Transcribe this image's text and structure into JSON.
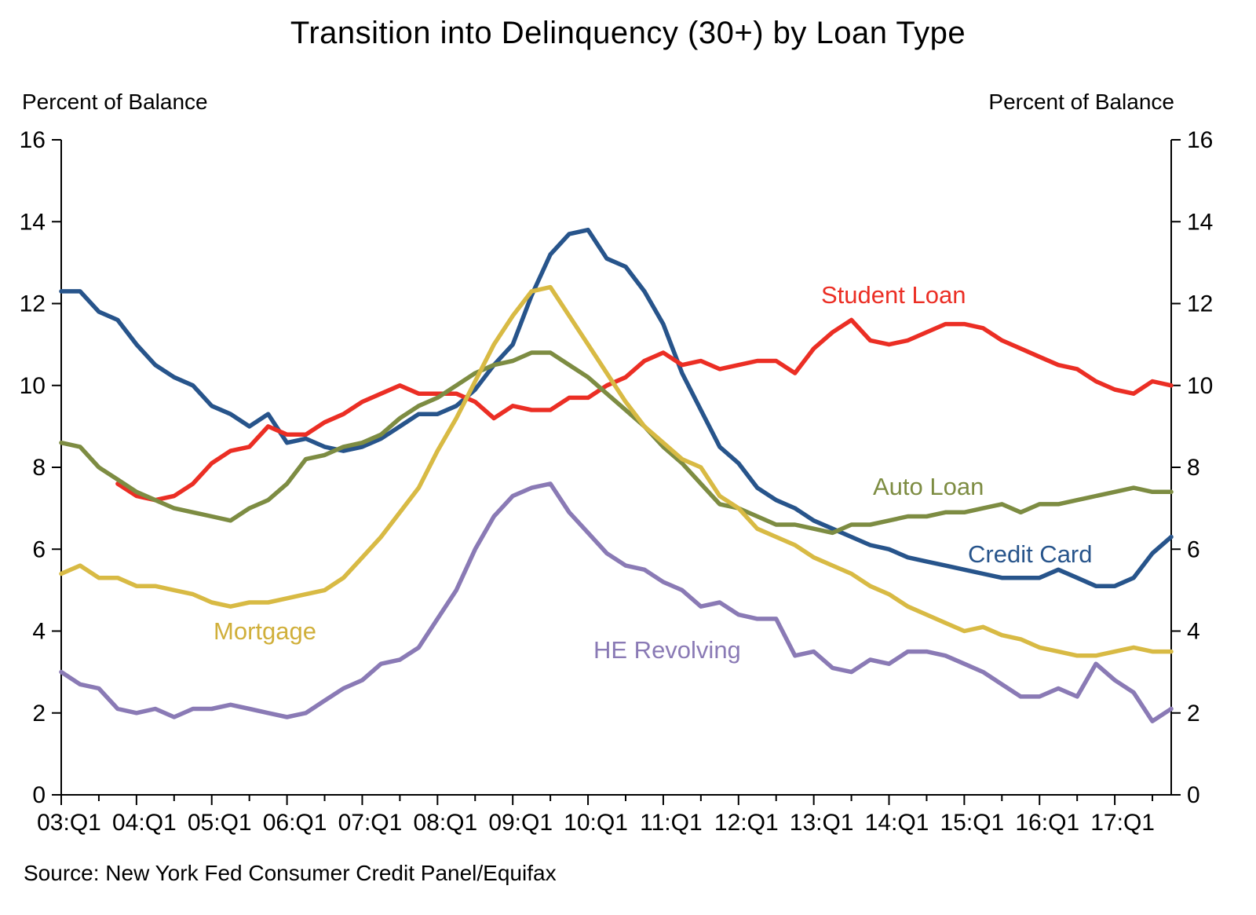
{
  "header": {
    "title": "Transition into Delinquency (30+) by Loan Type"
  },
  "axes": {
    "left_label": "Percent of Balance",
    "right_label": "Percent of Balance",
    "y_ticks": [
      0,
      2,
      4,
      6,
      8,
      10,
      12,
      14,
      16
    ],
    "x_ticks": [
      "03:Q1",
      "04:Q1",
      "05:Q1",
      "06:Q1",
      "07:Q1",
      "08:Q1",
      "09:Q1",
      "10:Q1",
      "11:Q1",
      "12:Q1",
      "13:Q1",
      "14:Q1",
      "15:Q1",
      "16:Q1",
      "17:Q1"
    ]
  },
  "source": "Source: New York Fed Consumer Credit Panel/Equifax",
  "chart_data": {
    "type": "line",
    "x_frequency": "quarterly",
    "x_start": "2003:Q1",
    "x_end": "2017:Q4",
    "ylim": [
      0,
      16
    ],
    "grid": false,
    "legend_position": "inline-annotations",
    "series": [
      {
        "name": "Credit Card",
        "color": "#27548B",
        "values": [
          12.3,
          12.3,
          11.8,
          11.6,
          11.0,
          10.5,
          10.2,
          10.0,
          9.5,
          9.3,
          9.0,
          9.3,
          8.6,
          8.7,
          8.5,
          8.4,
          8.5,
          8.7,
          9.0,
          9.3,
          9.3,
          9.5,
          9.9,
          10.5,
          11.0,
          12.2,
          13.2,
          13.7,
          13.8,
          13.1,
          12.9,
          12.3,
          11.5,
          10.3,
          9.4,
          8.5,
          8.1,
          7.5,
          7.2,
          7.0,
          6.7,
          6.5,
          6.3,
          6.1,
          6.0,
          5.8,
          5.7,
          5.6,
          5.5,
          5.4,
          5.3,
          5.3,
          5.3,
          5.5,
          5.3,
          5.1,
          5.1,
          5.3,
          5.9,
          6.3
        ]
      },
      {
        "name": "Student Loan",
        "color": "#EB2E24",
        "values": [
          null,
          null,
          null,
          7.6,
          7.3,
          7.2,
          7.3,
          7.6,
          8.1,
          8.4,
          8.5,
          9.0,
          8.8,
          8.8,
          9.1,
          9.3,
          9.6,
          9.8,
          10.0,
          9.8,
          9.8,
          9.8,
          9.6,
          9.2,
          9.5,
          9.4,
          9.4,
          9.7,
          9.7,
          10.0,
          10.2,
          10.6,
          10.8,
          10.5,
          10.6,
          10.4,
          10.5,
          10.6,
          10.6,
          10.3,
          10.9,
          11.3,
          11.6,
          11.1,
          11.0,
          11.1,
          11.3,
          11.5,
          11.5,
          11.4,
          11.1,
          10.9,
          10.7,
          10.5,
          10.4,
          10.1,
          9.9,
          9.8,
          10.1,
          10.0
        ]
      },
      {
        "name": "Auto Loan",
        "color": "#7D8C42",
        "values": [
          8.6,
          8.5,
          8.0,
          7.7,
          7.4,
          7.2,
          7.0,
          6.9,
          6.8,
          6.7,
          7.0,
          7.2,
          7.6,
          8.2,
          8.3,
          8.5,
          8.6,
          8.8,
          9.2,
          9.5,
          9.7,
          10.0,
          10.3,
          10.5,
          10.6,
          10.8,
          10.8,
          10.5,
          10.2,
          9.8,
          9.4,
          9.0,
          8.5,
          8.1,
          7.6,
          7.1,
          7.0,
          6.8,
          6.6,
          6.6,
          6.5,
          6.4,
          6.6,
          6.6,
          6.7,
          6.8,
          6.8,
          6.9,
          6.9,
          7.0,
          7.1,
          6.9,
          7.1,
          7.1,
          7.2,
          7.3,
          7.4,
          7.5,
          7.4,
          7.4
        ]
      },
      {
        "name": "Mortgage",
        "color": "#D8BA44",
        "values": [
          5.4,
          5.6,
          5.3,
          5.3,
          5.1,
          5.1,
          5.0,
          4.9,
          4.7,
          4.6,
          4.7,
          4.7,
          4.8,
          4.9,
          5.0,
          5.3,
          5.8,
          6.3,
          6.9,
          7.5,
          8.4,
          9.2,
          10.1,
          11.0,
          11.7,
          12.3,
          12.4,
          11.7,
          11.0,
          10.3,
          9.6,
          9.0,
          8.6,
          8.2,
          8.0,
          7.3,
          7.0,
          6.5,
          6.3,
          6.1,
          5.8,
          5.6,
          5.4,
          5.1,
          4.9,
          4.6,
          4.4,
          4.2,
          4.0,
          4.1,
          3.9,
          3.8,
          3.6,
          3.5,
          3.4,
          3.4,
          3.5,
          3.6,
          3.5,
          3.5
        ]
      },
      {
        "name": "HE Revolving",
        "color": "#8A7AB5",
        "values": [
          3.0,
          2.7,
          2.6,
          2.1,
          2.0,
          2.1,
          1.9,
          2.1,
          2.1,
          2.2,
          2.1,
          2.0,
          1.9,
          2.0,
          2.3,
          2.6,
          2.8,
          3.2,
          3.3,
          3.6,
          4.3,
          5.0,
          6.0,
          6.8,
          7.3,
          7.5,
          7.6,
          6.9,
          6.4,
          5.9,
          5.6,
          5.5,
          5.2,
          5.0,
          4.6,
          4.7,
          4.4,
          4.3,
          4.3,
          3.4,
          3.5,
          3.1,
          3.0,
          3.3,
          3.2,
          3.5,
          3.5,
          3.4,
          3.2,
          3.0,
          2.7,
          2.4,
          2.4,
          2.6,
          2.4,
          3.2,
          2.8,
          2.5,
          1.8,
          2.1
        ]
      }
    ]
  }
}
